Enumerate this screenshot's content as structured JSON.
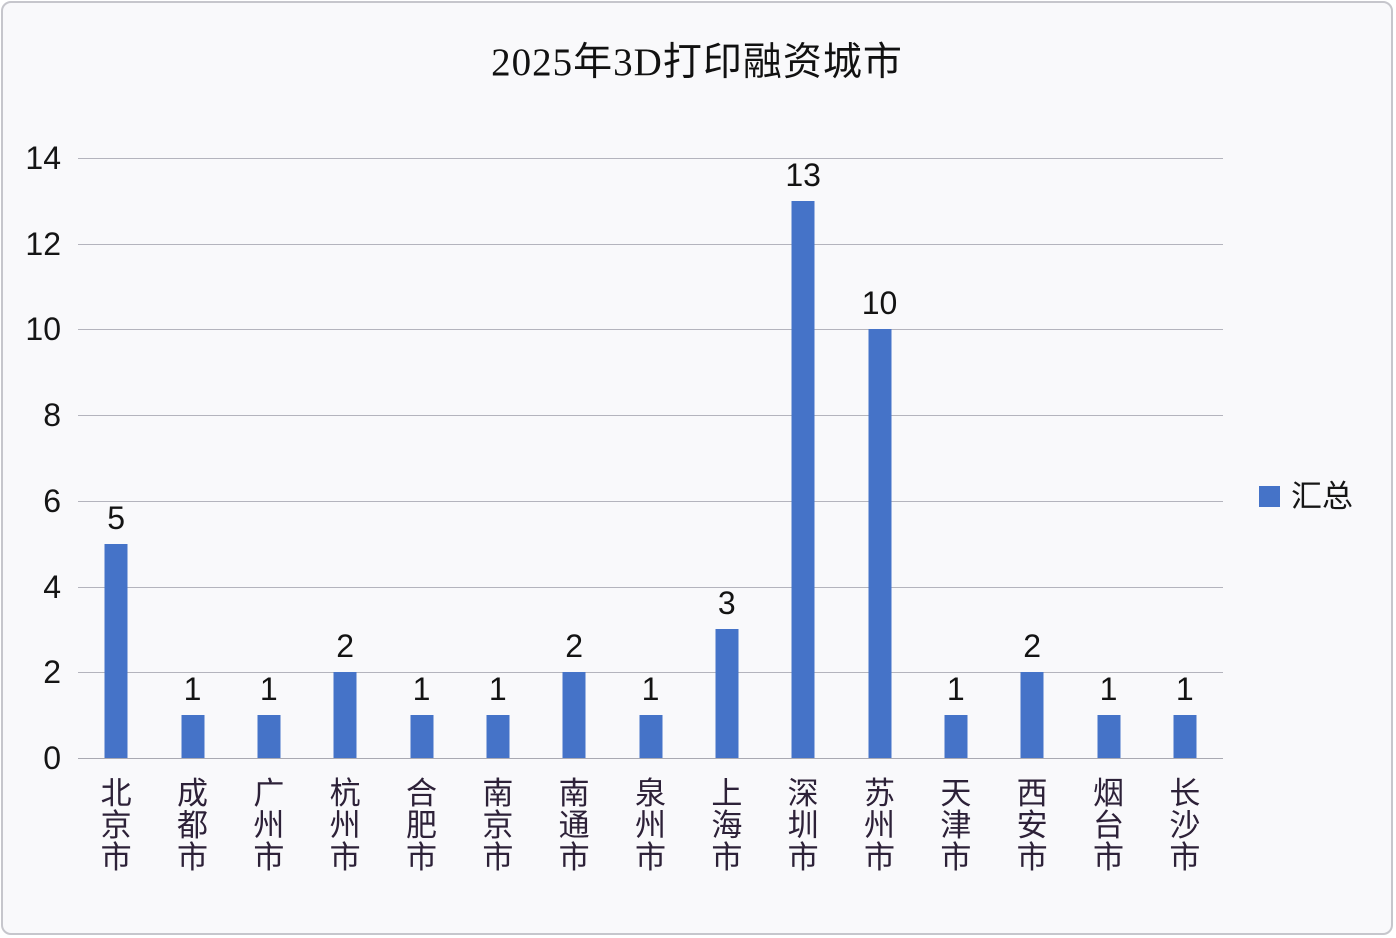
{
  "title": "2025年3D打印融资城市",
  "legend": {
    "label": "汇总",
    "swatch_color": "#4573c8"
  },
  "colors": {
    "bar": "#4573c8",
    "gridline": "#b4b4bd",
    "background": "#f9f9fb",
    "border": "#c6c6cc",
    "text": "#111111",
    "category_text": "#2d2138"
  },
  "chart_data": {
    "type": "bar",
    "title": "2025年3D打印融资城市",
    "categories": [
      "北京市",
      "成都市",
      "广州市",
      "杭州市",
      "合肥市",
      "南京市",
      "南通市",
      "泉州市",
      "上海市",
      "深圳市",
      "苏州市",
      "天津市",
      "西安市",
      "烟台市",
      "长沙市"
    ],
    "series": [
      {
        "name": "汇总",
        "values": [
          5,
          1,
          1,
          2,
          1,
          1,
          2,
          1,
          3,
          13,
          10,
          1,
          2,
          1,
          1
        ]
      }
    ],
    "xlabel": "",
    "ylabel": "",
    "ylim": [
      0,
      14
    ],
    "ytick_step": 2,
    "yticks": [
      0,
      2,
      4,
      6,
      8,
      10,
      12,
      14
    ],
    "grid": true,
    "data_labels": true,
    "legend_position": "right",
    "bar_color": "#4573c8"
  }
}
